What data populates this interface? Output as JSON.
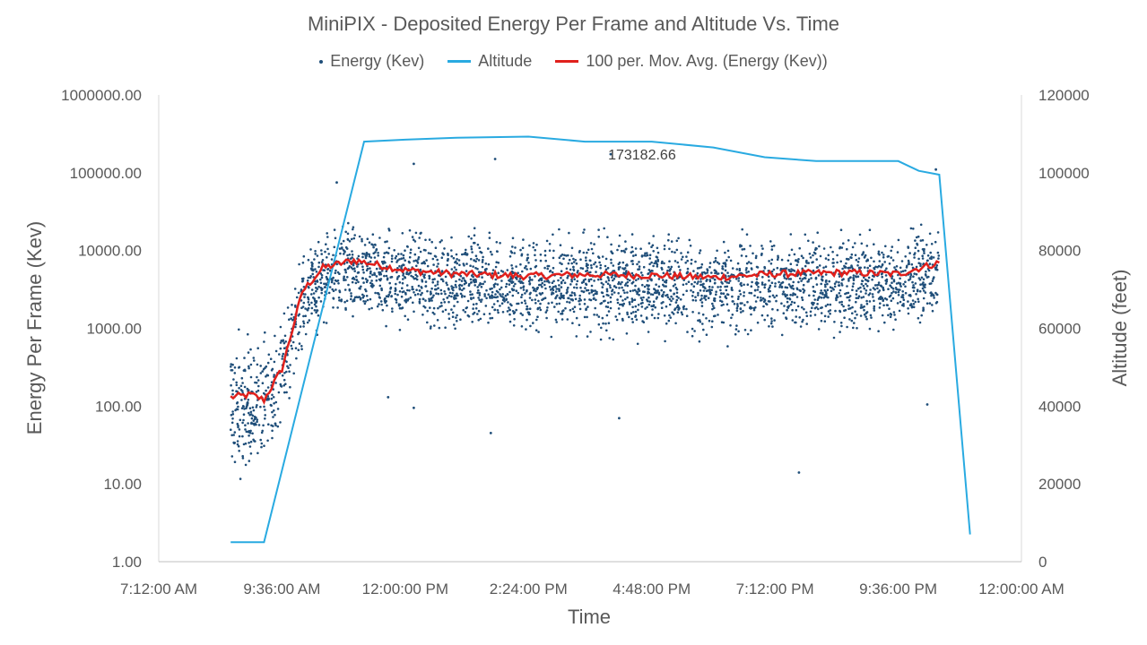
{
  "chart_data": {
    "type": "scatter",
    "title": "MiniPIX - Deposited Energy Per Frame and Altitude Vs. Time",
    "xlabel": "Time",
    "ylabel": "Energy Per Frame (Kev)",
    "y2label": "Altitude (feet)",
    "x_ticks": [
      "7:12:00 AM",
      "9:36:00 AM",
      "12:00:00 PM",
      "2:24:00 PM",
      "4:48:00 PM",
      "7:12:00 PM",
      "9:36:00 PM",
      "12:00:00 AM"
    ],
    "y_ticks": [
      "1000000.00",
      "100000.00",
      "10000.00",
      "1000.00",
      "100.00",
      "10.00",
      "1.00"
    ],
    "y2_ticks": [
      "120000",
      "100000",
      "80000",
      "60000",
      "40000",
      "20000",
      "0"
    ],
    "ylim": [
      1,
      1000000
    ],
    "y_scale": "log",
    "y2lim": [
      0,
      120000
    ],
    "grid": false,
    "legend_position": "top",
    "series": [
      {
        "name": "Energy (Kev)",
        "kind": "scatter",
        "color": "#1f4e79"
      },
      {
        "name": "Altitude",
        "kind": "line",
        "color": "#29aae1",
        "x": [
          "8:36 AM",
          "9:15 AM",
          "11:12 AM",
          "12:00 PM",
          "1:00 PM",
          "2:24 PM",
          "3:30 PM",
          "4:48 PM",
          "6:00 PM",
          "7:00 PM",
          "8:00 PM",
          "9:00 PM",
          "9:36 PM",
          "10:00 PM",
          "10:24 PM",
          "11:00 PM"
        ],
        "values": [
          5000,
          5000,
          108000,
          108500,
          109000,
          109300,
          108000,
          108000,
          106500,
          104000,
          103000,
          103000,
          103000,
          100500,
          99500,
          7000
        ]
      },
      {
        "name": "100 per. Mov. Avg. (Energy (Kev))",
        "kind": "line",
        "color": "#e0201c",
        "x": [
          "8:36 AM",
          "9:00 AM",
          "9:15 AM",
          "9:36 AM",
          "10:00 AM",
          "10:24 AM",
          "11:00 AM",
          "12:00 PM",
          "1:00 PM",
          "2:24 PM",
          "3:30 PM",
          "4:48 PM",
          "6:00 PM",
          "7:12 PM",
          "8:30 PM",
          "9:36 PM",
          "10:24 PM"
        ],
        "values": [
          130,
          140,
          120,
          300,
          3000,
          6000,
          7500,
          5600,
          5000,
          4700,
          4900,
          4800,
          4500,
          5000,
          5200,
          5000,
          7000
        ]
      }
    ],
    "annotations": [
      {
        "text": "173182.66",
        "x": "4:00 PM",
        "y": 173182.66
      }
    ],
    "energy_typical_range": [
      300,
      30000
    ],
    "energy_outliers": [
      {
        "x": "4:00 PM",
        "y": 173182.66
      },
      {
        "x": "10:20 PM",
        "y": 110000
      },
      {
        "x": "12:10 PM",
        "y": 130000
      },
      {
        "x": "1:45 PM",
        "y": 150000
      },
      {
        "x": "7:40 PM",
        "y": 14
      },
      {
        "x": "11:40 AM",
        "y": 130
      },
      {
        "x": "12:10 PM",
        "y": 95
      },
      {
        "x": "1:40 PM",
        "y": 45
      },
      {
        "x": "4:10 PM",
        "y": 70
      },
      {
        "x": "10:10 PM",
        "y": 105
      },
      {
        "x": "10:40 AM",
        "y": 75000
      }
    ]
  }
}
